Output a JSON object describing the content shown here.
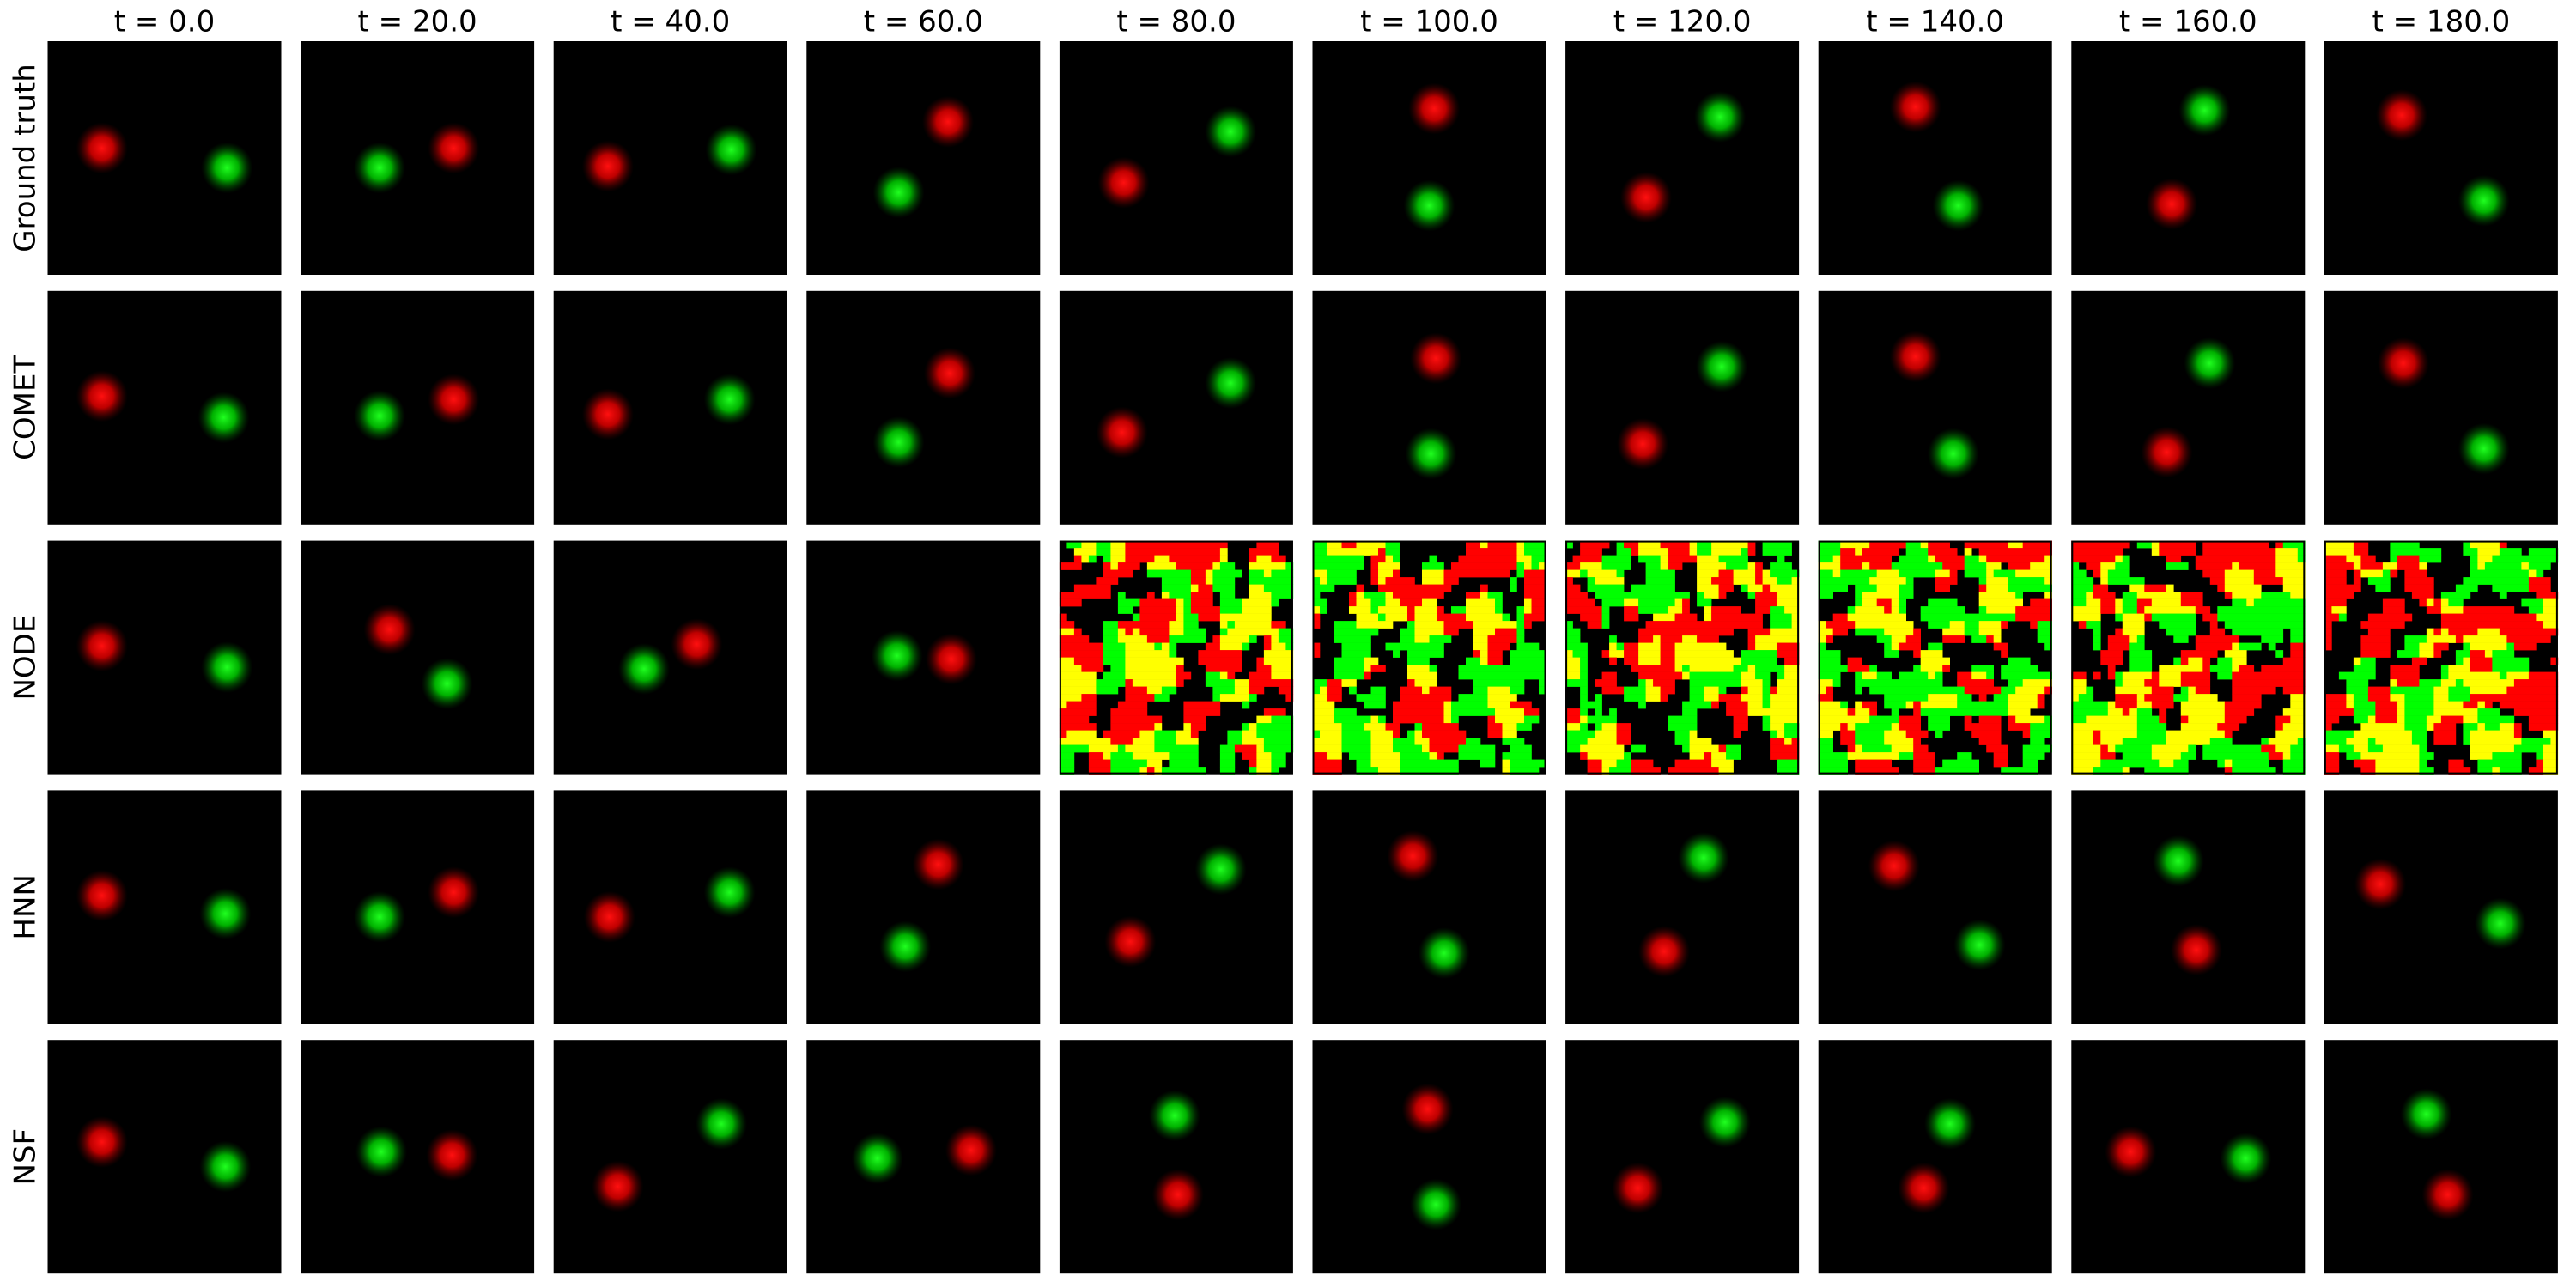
{
  "columns": [
    "t = 0.0",
    "t = 20.0",
    "t = 40.0",
    "t = 60.0",
    "t = 80.0",
    "t = 100.0",
    "t = 120.0",
    "t = 140.0",
    "t = 160.0",
    "t = 180.0"
  ],
  "rows": [
    "Ground truth",
    "COMET",
    "NODE",
    "HNN",
    "NSF"
  ]
}
